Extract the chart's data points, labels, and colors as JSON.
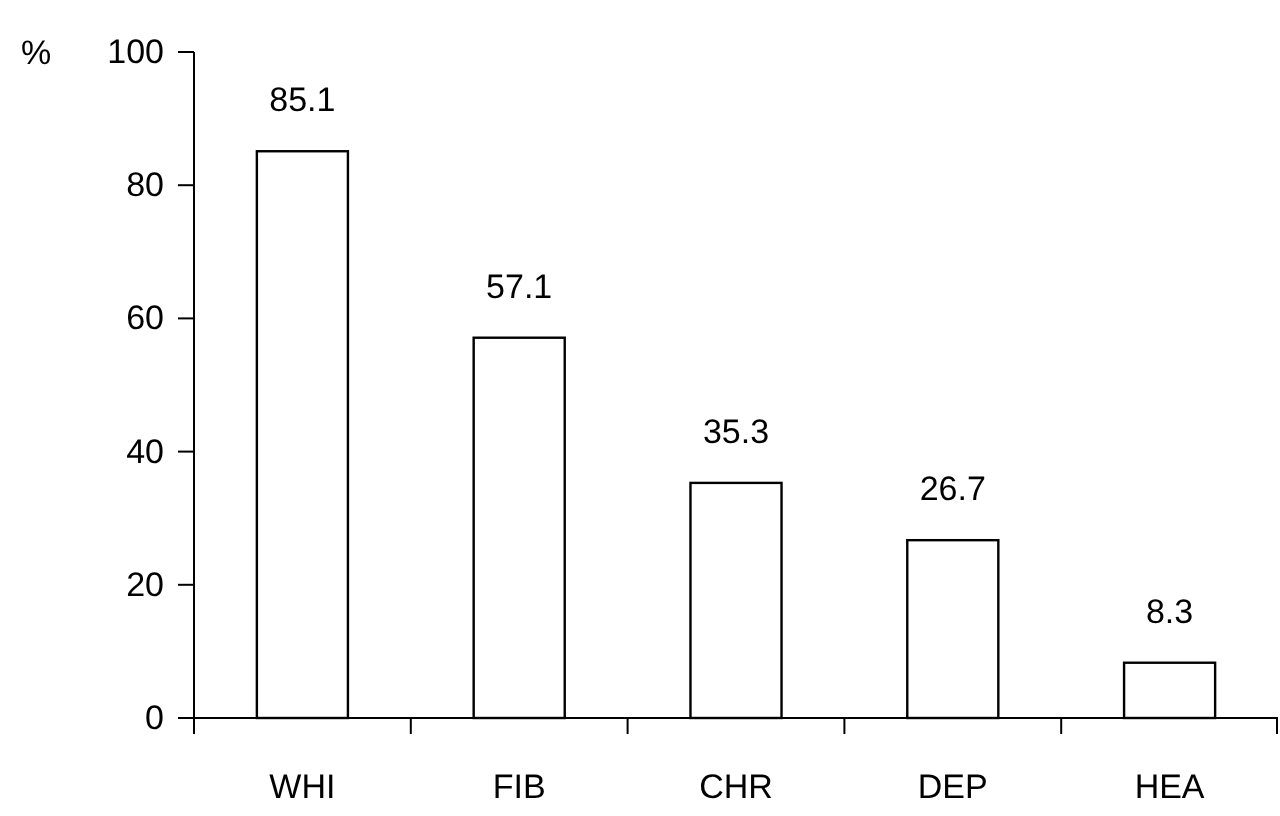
{
  "chart_data": {
    "type": "bar",
    "ylabel": "%",
    "categories": [
      "WHI",
      "FIB",
      "CHR",
      "DEP",
      "HEA"
    ],
    "values": [
      85.1,
      57.1,
      35.3,
      26.7,
      8.3
    ],
    "color": "#ffffff",
    "ylim": [
      0,
      100
    ],
    "yticks": [
      0,
      20,
      40,
      60,
      80,
      100
    ],
    "data_labels": true,
    "grid": false
  }
}
